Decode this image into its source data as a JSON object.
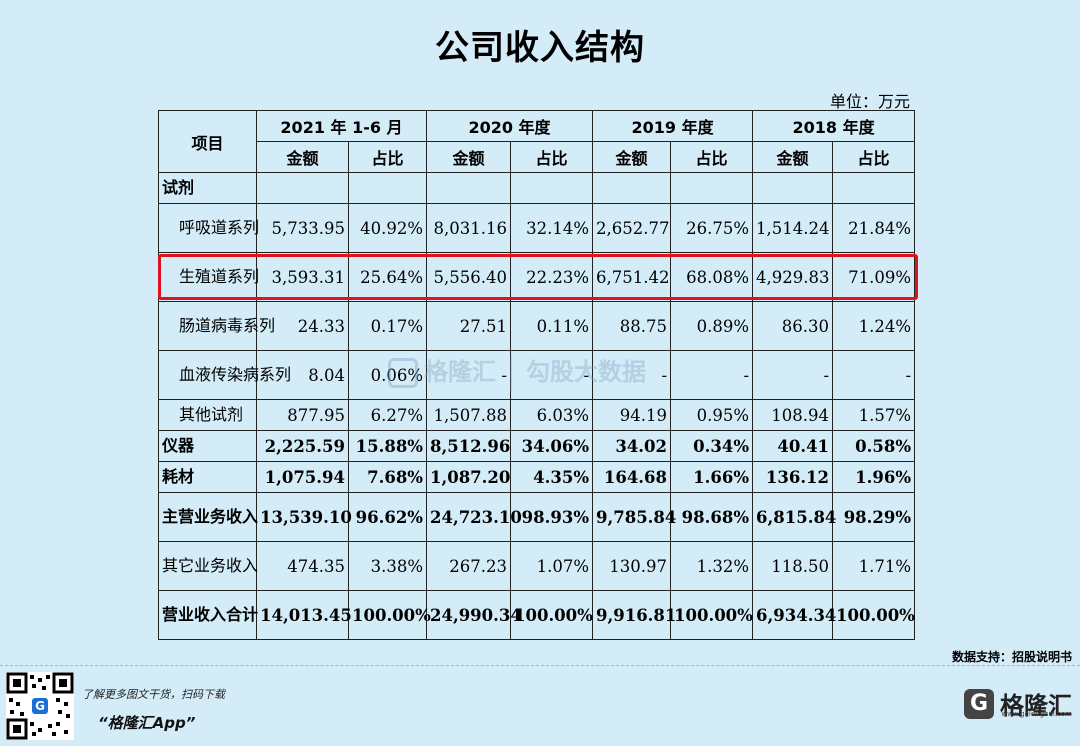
{
  "title": "公司收入结构",
  "unit": "单位：万元",
  "table": {
    "item_header": "项目",
    "periods": [
      "2021 年 1-6 月",
      "2020 年度",
      "2019 年度",
      "2018 年度"
    ],
    "amount_label": "金额",
    "ratio_label": "占比",
    "rows": [
      {
        "label": "试剂",
        "bold": true,
        "values": [
          "",
          "",
          "",
          "",
          "",
          "",
          "",
          ""
        ]
      },
      {
        "label": "呼吸道系列",
        "indent": true,
        "values": [
          "5,733.95",
          "40.92%",
          "8,031.16",
          "32.14%",
          "2,652.77",
          "26.75%",
          "1,514.24",
          "21.84%"
        ]
      },
      {
        "label": "生殖道系列",
        "indent": true,
        "highlight": true,
        "values": [
          "3,593.31",
          "25.64%",
          "5,556.40",
          "22.23%",
          "6,751.42",
          "68.08%",
          "4,929.83",
          "71.09%"
        ]
      },
      {
        "label": "肠道病毒系列",
        "indent": true,
        "values": [
          "24.33",
          "0.17%",
          "27.51",
          "0.11%",
          "88.75",
          "0.89%",
          "86.30",
          "1.24%"
        ]
      },
      {
        "label": "血液传染病系列",
        "indent": true,
        "values": [
          "8.04",
          "0.06%",
          "-",
          "-",
          "-",
          "-",
          "-",
          "-"
        ]
      },
      {
        "label": "其他试剂",
        "indent": true,
        "values": [
          "877.95",
          "6.27%",
          "1,507.88",
          "6.03%",
          "94.19",
          "0.95%",
          "108.94",
          "1.57%"
        ]
      },
      {
        "label": "仪器",
        "bold": true,
        "values": [
          "2,225.59",
          "15.88%",
          "8,512.96",
          "34.06%",
          "34.02",
          "0.34%",
          "40.41",
          "0.58%"
        ]
      },
      {
        "label": "耗材",
        "bold": true,
        "values": [
          "1,075.94",
          "7.68%",
          "1,087.20",
          "4.35%",
          "164.68",
          "1.66%",
          "136.12",
          "1.96%"
        ]
      },
      {
        "label": "主营业务收入",
        "bold": true,
        "values": [
          "13,539.10",
          "96.62%",
          "24,723.10",
          "98.93%",
          "9,785.84",
          "98.68%",
          "6,815.84",
          "98.29%"
        ]
      },
      {
        "label": "其它业务收入",
        "values": [
          "474.35",
          "3.38%",
          "267.23",
          "1.07%",
          "130.97",
          "1.32%",
          "118.50",
          "1.71%"
        ]
      },
      {
        "label": "营业收入合计",
        "bold": true,
        "values": [
          "14,013.45",
          "100.00%",
          "24,990.34",
          "100.00%",
          "9,916.81",
          "100.00%",
          "6,934.34",
          "100.00%"
        ]
      }
    ]
  },
  "watermark": {
    "brand": "格隆汇",
    "brand_url": "www.gelonghui.com",
    "brand2": "勾股大数据",
    "brand2_url": "www.gogudata.com"
  },
  "source": "数据支持：招股说明书",
  "footer": {
    "promo_line1": "了解更多图文干货，扫码下载",
    "promo_line2": "“格隆汇App”",
    "brand_name": "格隆汇",
    "brand_url": "www.gelonghui.com",
    "brand_letter": "G"
  },
  "colors": {
    "background": "#d3ecf7",
    "highlight": "#e0121b"
  }
}
